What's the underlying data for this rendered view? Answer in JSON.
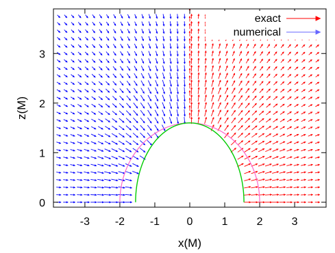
{
  "chart_data": {
    "type": "vector-field",
    "xlabel": "x(M)",
    "ylabel": "z(M)",
    "xlim": [
      -3.9,
      3.9
    ],
    "ylim": [
      -0.1,
      3.9
    ],
    "x_ticks": [
      -3,
      -2,
      -1,
      0,
      1,
      2,
      3
    ],
    "x_tick_labels": [
      "-3",
      "-2",
      "-1",
      "0",
      "1",
      "2",
      "3"
    ],
    "y_ticks": [
      0,
      1,
      2,
      3
    ],
    "y_tick_labels": [
      "0",
      "1",
      "2",
      "3"
    ],
    "grid": false,
    "legend_position": "top-right",
    "series": [
      {
        "name": "exact",
        "color": "#ff0000",
        "kind": "vector-field",
        "region": "x > 0"
      },
      {
        "name": "numerical",
        "color": "#0000ff",
        "kind": "vector-field",
        "region": "x < 0"
      }
    ],
    "field_grid": {
      "x_start": -3.75,
      "x_step": 0.2,
      "z_start": 0.0,
      "z_step": 0.15,
      "columns": 38,
      "rows": 26
    },
    "curves": [
      {
        "kind": "semicircle",
        "radius": 1.6,
        "color": "#ff66cc",
        "description_in_image": false
      },
      {
        "kind": "semi-ellipse",
        "a": 1.55,
        "b": 1.6,
        "color": "#00cc00",
        "description_in_image": false
      },
      {
        "kind": "semicircle-outer",
        "radius": 2.0,
        "color": "#ff66cc",
        "description_in_image": false
      }
    ]
  }
}
